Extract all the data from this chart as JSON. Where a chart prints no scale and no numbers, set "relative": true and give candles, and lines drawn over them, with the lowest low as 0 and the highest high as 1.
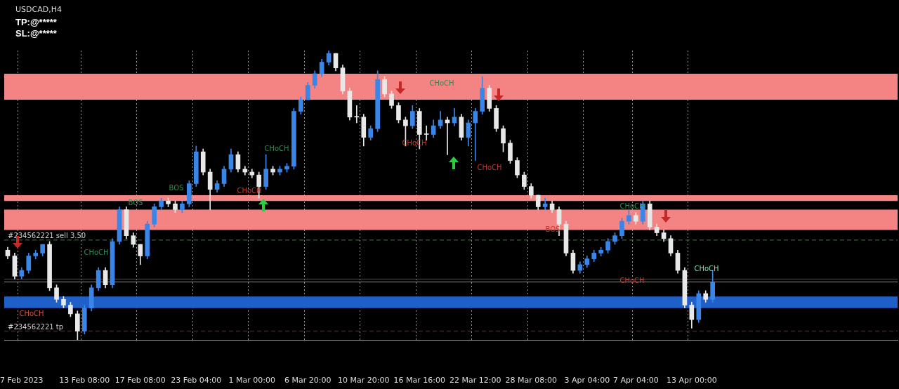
{
  "chart_data": {
    "type": "candlestick",
    "relative": true,
    "legend": false,
    "grid": "x",
    "categories": [
      null,
      null,
      "7 Feb 2023",
      null,
      null,
      null,
      null,
      null,
      null,
      null,
      null,
      "13 Feb 08:00",
      null,
      null,
      null,
      null,
      null,
      null,
      null,
      "17 Feb 08:00",
      null,
      null,
      null,
      null,
      null,
      null,
      null,
      "23 Feb 04:00",
      null,
      null,
      null,
      null,
      null,
      null,
      null,
      "1 Mar 00:00",
      null,
      null,
      null,
      null,
      null,
      null,
      null,
      "6 Mar 20:00",
      null,
      null,
      null,
      null,
      null,
      null,
      null,
      "10 Mar 20:00",
      null,
      null,
      null,
      null,
      null,
      null,
      null,
      "16 Mar 16:00",
      null,
      null,
      null,
      null,
      null,
      null,
      null,
      "22 Mar 12:00",
      null,
      null,
      null,
      null,
      null,
      null,
      null,
      "28 Mar 08:00",
      null,
      null,
      null,
      null,
      null,
      null,
      null,
      "3 Apr 04:00",
      null,
      null,
      null,
      null,
      null,
      null,
      "7 Apr 04:00",
      null,
      null,
      null,
      null,
      null,
      null,
      null,
      "13 Apr 00:00",
      null,
      null,
      null,
      null,
      null,
      null,
      null,
      null,
      null,
      null,
      null,
      null,
      null,
      null,
      null,
      null,
      null,
      null,
      null,
      null,
      null,
      null,
      null,
      null,
      null,
      null,
      null,
      null,
      null
    ],
    "ohlc": [
      [
        0.31,
        0.32,
        0.28,
        0.29
      ],
      [
        0.29,
        0.3,
        0.21,
        0.22
      ],
      [
        0.22,
        0.25,
        0.21,
        0.24
      ],
      [
        0.24,
        0.3,
        0.23,
        0.29
      ],
      [
        0.29,
        0.31,
        0.28,
        0.3
      ],
      [
        0.3,
        0.33,
        0.29,
        0.33
      ],
      [
        0.33,
        0.34,
        0.17,
        0.18
      ],
      [
        0.18,
        0.19,
        0.13,
        0.14
      ],
      [
        0.14,
        0.15,
        0.11,
        0.12
      ],
      [
        0.12,
        0.13,
        0.08,
        0.09
      ],
      [
        0.09,
        0.1,
        0,
        0.03
      ],
      [
        0.03,
        0.12,
        0.02,
        0.11
      ],
      [
        0.11,
        0.19,
        0.1,
        0.18
      ],
      [
        0.18,
        0.25,
        0.17,
        0.24
      ],
      [
        0.24,
        0.25,
        0.18,
        0.19
      ],
      [
        0.19,
        0.35,
        0.18,
        0.34
      ],
      [
        0.34,
        0.46,
        0.33,
        0.45
      ],
      [
        0.45,
        0.46,
        0.35,
        0.36
      ],
      [
        0.36,
        0.37,
        0.32,
        0.33
      ],
      [
        0.33,
        0.33,
        0.26,
        0.29
      ],
      [
        0.29,
        0.41,
        0.28,
        0.4
      ],
      [
        0.4,
        0.47,
        0.39,
        0.46
      ],
      [
        0.46,
        0.49,
        0.45,
        0.48
      ],
      [
        0.48,
        0.49,
        0.46,
        0.47
      ],
      [
        0.47,
        0.48,
        0.44,
        0.45
      ],
      [
        0.45,
        0.48,
        0.44,
        0.47
      ],
      [
        0.47,
        0.55,
        0.46,
        0.54
      ],
      [
        0.54,
        0.67,
        0.53,
        0.65
      ],
      [
        0.65,
        0.66,
        0.57,
        0.58
      ],
      [
        0.58,
        0.59,
        0.45,
        0.52
      ],
      [
        0.52,
        0.55,
        0.51,
        0.54
      ],
      [
        0.54,
        0.6,
        0.53,
        0.59
      ],
      [
        0.59,
        0.66,
        0.58,
        0.64
      ],
      [
        0.64,
        0.65,
        0.58,
        0.59
      ],
      [
        0.59,
        0.6,
        0.57,
        0.58
      ],
      [
        0.58,
        0.59,
        0.56,
        0.57
      ],
      [
        0.57,
        0.58,
        0.49,
        0.53
      ],
      [
        0.53,
        0.64,
        0.52,
        0.59
      ],
      [
        0.59,
        0.6,
        0.57,
        0.58
      ],
      [
        0.58,
        0.6,
        0.57,
        0.59
      ],
      [
        0.59,
        0.61,
        0.58,
        0.6
      ],
      [
        0.6,
        0.8,
        0.59,
        0.79
      ],
      [
        0.79,
        0.84,
        0.78,
        0.83
      ],
      [
        0.83,
        0.89,
        0.83,
        0.88
      ],
      [
        0.88,
        0.93,
        0.87,
        0.92
      ],
      [
        0.92,
        0.97,
        0.91,
        0.96
      ],
      [
        0.96,
        1,
        0.95,
        0.99
      ],
      [
        0.99,
        0.99,
        0.93,
        0.94
      ],
      [
        0.94,
        0.95,
        0.85,
        0.86
      ],
      [
        0.86,
        0.87,
        0.76,
        0.77
      ],
      [
        0.77,
        0.81,
        0.75,
        0.77
      ],
      [
        0.77,
        0.78,
        0.67,
        0.7
      ],
      [
        0.7,
        0.74,
        0.69,
        0.73
      ],
      [
        0.73,
        0.93,
        0.72,
        0.9
      ],
      [
        0.9,
        0.91,
        0.84,
        0.85
      ],
      [
        0.85,
        0.86,
        0.8,
        0.81
      ],
      [
        0.81,
        0.82,
        0.75,
        0.76
      ],
      [
        0.76,
        0.77,
        0.67,
        0.74
      ],
      [
        0.74,
        0.81,
        0.73,
        0.79
      ],
      [
        0.79,
        0.8,
        0.66,
        0.71
      ],
      [
        0.71,
        0.74,
        0.69,
        0.71
      ],
      [
        0.71,
        0.76,
        0.7,
        0.74
      ],
      [
        0.74,
        0.79,
        0.73,
        0.76
      ],
      [
        0.76,
        0.77,
        0.64,
        0.75
      ],
      [
        0.75,
        0.8,
        0.74,
        0.77
      ],
      [
        0.77,
        0.78,
        0.69,
        0.7
      ],
      [
        0.7,
        0.76,
        0.67,
        0.75
      ],
      [
        0.75,
        0.8,
        0.62,
        0.79
      ],
      [
        0.79,
        0.91,
        0.78,
        0.87
      ],
      [
        0.87,
        0.88,
        0.79,
        0.8
      ],
      [
        0.8,
        0.81,
        0.72,
        0.73
      ],
      [
        0.73,
        0.74,
        0.65,
        0.68
      ],
      [
        0.68,
        0.69,
        0.61,
        0.62
      ],
      [
        0.62,
        0.63,
        0.56,
        0.57
      ],
      [
        0.57,
        0.58,
        0.52,
        0.53
      ],
      [
        0.53,
        0.54,
        0.49,
        0.5
      ],
      [
        0.5,
        0.5,
        0.45,
        0.46
      ],
      [
        0.46,
        0.49,
        0.45,
        0.47
      ],
      [
        0.47,
        0.48,
        0.44,
        0.45
      ],
      [
        0.45,
        0.46,
        0.36,
        0.4
      ],
      [
        0.4,
        0.41,
        0.29,
        0.3
      ],
      [
        0.3,
        0.31,
        0.23,
        0.24
      ],
      [
        0.24,
        0.27,
        0.23,
        0.26
      ],
      [
        0.26,
        0.29,
        0.25,
        0.28
      ],
      [
        0.28,
        0.31,
        0.27,
        0.3
      ],
      [
        0.3,
        0.32,
        0.29,
        0.31
      ],
      [
        0.31,
        0.35,
        0.3,
        0.34
      ],
      [
        0.34,
        0.37,
        0.33,
        0.36
      ],
      [
        0.36,
        0.42,
        0.35,
        0.41
      ],
      [
        0.41,
        0.45,
        0.4,
        0.43
      ],
      [
        0.43,
        0.44,
        0.4,
        0.41
      ],
      [
        0.41,
        0.48,
        0.4,
        0.47
      ],
      [
        0.47,
        0.48,
        0.38,
        0.39
      ],
      [
        0.39,
        0.4,
        0.36,
        0.37
      ],
      [
        0.37,
        0.38,
        0.34,
        0.35
      ],
      [
        0.35,
        0.36,
        0.29,
        0.3
      ],
      [
        0.3,
        0.31,
        0.23,
        0.24
      ],
      [
        0.24,
        0.25,
        0.11,
        0.12
      ],
      [
        0.12,
        0.13,
        0.04,
        0.07
      ],
      [
        0.07,
        0.17,
        0.06,
        0.16
      ],
      [
        0.16,
        0.17,
        0.13,
        0.14
      ],
      [
        0.14,
        0.24,
        0.13,
        0.2
      ],
      null,
      null,
      null,
      null,
      null,
      null,
      null,
      null,
      null,
      null,
      null,
      null,
      null,
      null,
      null,
      null,
      null,
      null,
      null,
      null,
      null,
      null,
      null,
      null,
      null,
      null
    ],
    "colors": [
      "#e8e8e8",
      "#e8e8e8",
      "#3a86e8",
      "#3a86e8",
      "#3a86e8",
      "#3a86e8",
      "#e8e8e8",
      "#e8e8e8",
      "#e8e8e8",
      "#e8e8e8",
      "#e8e8e8",
      "#3a86e8",
      "#3a86e8",
      "#3a86e8",
      "#e8e8e8",
      "#3a86e8",
      "#3a86e8",
      "#e8e8e8",
      "#e8e8e8",
      "#e8e8e8",
      "#3a86e8",
      "#3a86e8",
      "#3a86e8",
      "#e8e8e8",
      "#e8e8e8",
      "#3a86e8",
      "#3a86e8",
      "#3a86e8",
      "#e8e8e8",
      "#e8e8e8",
      "#3a86e8",
      "#3a86e8",
      "#3a86e8",
      "#e8e8e8",
      "#e8e8e8",
      "#e8e8e8",
      "#e8e8e8",
      "#3a86e8",
      "#e8e8e8",
      "#3a86e8",
      "#3a86e8",
      "#3a86e8",
      "#3a86e8",
      "#3a86e8",
      "#3a86e8",
      "#3a86e8",
      "#3a86e8",
      "#e8e8e8",
      "#e8e8e8",
      "#e8e8e8",
      "#e8e8e8",
      "#e8e8e8",
      "#3a86e8",
      "#3a86e8",
      "#e8e8e8",
      "#e8e8e8",
      "#e8e8e8",
      "#e8e8e8",
      "#3a86e8",
      "#e8e8e8",
      "#e8e8e8",
      "#3a86e8",
      "#3a86e8",
      "#e8e8e8",
      "#3a86e8",
      "#e8e8e8",
      "#3a86e8",
      "#3a86e8",
      "#3a86e8",
      "#e8e8e8",
      "#e8e8e8",
      "#e8e8e8",
      "#e8e8e8",
      "#e8e8e8",
      "#e8e8e8",
      "#e8e8e8",
      "#e8e8e8",
      "#3a86e8",
      "#e8e8e8",
      "#e8e8e8",
      "#e8e8e8",
      "#e8e8e8",
      "#3a86e8",
      "#3a86e8",
      "#3a86e8",
      "#3a86e8",
      "#3a86e8",
      "#3a86e8",
      "#3a86e8",
      "#3a86e8",
      "#e8e8e8",
      "#3a86e8",
      "#e8e8e8",
      "#e8e8e8",
      "#e8e8e8",
      "#e8e8e8",
      "#e8e8e8",
      "#e8e8e8",
      "#e8e8e8",
      "#3a86e8",
      "#e8e8e8",
      "#3a86e8",
      null,
      null,
      null,
      null,
      null,
      null,
      null,
      null,
      null,
      null,
      null,
      null,
      null,
      null,
      null,
      null,
      null,
      null,
      null,
      null,
      null,
      null,
      null,
      null,
      null,
      null
    ],
    "ref_lines": [
      {
        "axis": "y",
        "value": 0.345,
        "label": "#234562221 sell 3.50",
        "color": "#3f7a3f",
        "line_style": "dashed"
      },
      {
        "axis": "y",
        "value": 0.03,
        "label": "#234562221 tp",
        "color": "#a01c1c",
        "line_style": "dashed"
      },
      {
        "axis": "y",
        "value": 0.21,
        "label": null,
        "color": "#b52222",
        "line_style": "solid"
      },
      {
        "axis": "y",
        "value": 0.2,
        "label": null,
        "color": "#8a8a8a",
        "line_style": "solid"
      }
    ],
    "bands": [
      {
        "axis": "y",
        "from": 0.83,
        "to": 0.92,
        "label": null,
        "color": "#f48484"
      },
      {
        "axis": "y",
        "from": 0.48,
        "to": 0.5,
        "label": null,
        "color": "#f48484"
      },
      {
        "axis": "y",
        "from": 0.38,
        "to": 0.45,
        "label": null,
        "color": "#f48484"
      },
      {
        "axis": "y",
        "from": 0.11,
        "to": 0.15,
        "label": null,
        "color": "#1f5fc8"
      }
    ],
    "annotations": [
      "USDCAD,H4",
      "TP:@*****",
      "SL:@*****",
      "CHoCH",
      "CHoCH",
      "BOS",
      "BOS",
      "CHoCH",
      "CHoCH",
      "CHoCH",
      "CHoCH",
      "CHoCH",
      "BOS",
      "CHoCH",
      "CHoCH",
      "CHoCH"
    ]
  }
}
